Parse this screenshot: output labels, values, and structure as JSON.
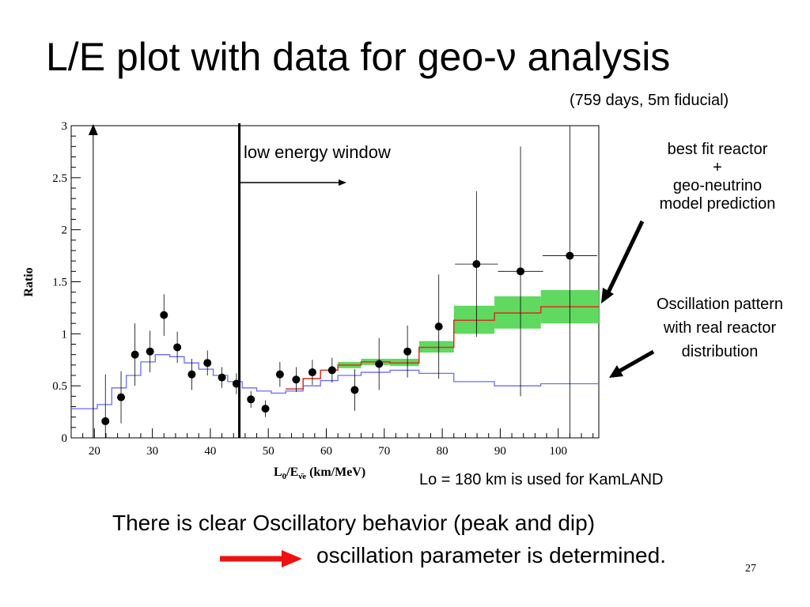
{
  "slide": {
    "title": "L/E plot with data for geo-ν analysis",
    "subtitle": "(759 days, 5m fiducial)",
    "note": "Lo = 180 km is used for KamLAND",
    "conclusion_line1": "There is clear Oscillatory behavior (peak and dip)",
    "conclusion_line2": "oscillation parameter is determined.",
    "page_number": "27"
  },
  "annotations": {
    "window_label": "low energy window",
    "bestfit_lines": [
      "best fit reactor",
      "+",
      "geo-neutrino",
      "model prediction"
    ],
    "oscillation_lines": [
      "Oscillation pattern",
      "with real reactor",
      "distribution"
    ]
  },
  "colors": {
    "data_points": "#000000",
    "no_osc_line": "#6a6aff",
    "best_fit_line": "#d9301e",
    "best_fit_band": "#5fd95f",
    "conclusion_arrow": "#ee1111"
  },
  "chart_data": {
    "type": "scatter",
    "xlabel": "L0/Eν̄e (km/MeV)",
    "ylabel": "Ratio",
    "xlim": [
      16,
      107
    ],
    "ylim": [
      0,
      3
    ],
    "x_ticks": [
      20,
      30,
      40,
      50,
      60,
      70,
      80,
      90,
      100
    ],
    "y_ticks": [
      {
        "value": 0,
        "label": "0"
      },
      {
        "value": 0.5,
        "label": "0.5"
      },
      {
        "value": 1,
        "label": "1"
      },
      {
        "value": 1.5,
        "label": "1.5"
      },
      {
        "value": 2,
        "label": "2"
      },
      {
        "value": 2.5,
        "label": "2.5"
      },
      {
        "value": 3,
        "label": "3"
      }
    ],
    "low_energy_window_x": 45,
    "data_points": [
      {
        "x": 21.9,
        "y": 0.16,
        "yerr": 0.45
      },
      {
        "x": 24.6,
        "y": 0.39,
        "yerr": 0.25
      },
      {
        "x": 27.0,
        "y": 0.8,
        "yerr": 0.3
      },
      {
        "x": 29.6,
        "y": 0.83,
        "yerr": 0.2
      },
      {
        "x": 32.0,
        "y": 1.18,
        "yerr": 0.2
      },
      {
        "x": 34.3,
        "y": 0.87,
        "yerr": 0.15
      },
      {
        "x": 36.8,
        "y": 0.61,
        "yerr": 0.15
      },
      {
        "x": 39.5,
        "y": 0.72,
        "yerr": 0.12
      },
      {
        "x": 42.0,
        "y": 0.58,
        "yerr": 0.1
      },
      {
        "x": 44.5,
        "y": 0.52,
        "yerr": 0.1
      },
      {
        "x": 47.0,
        "y": 0.37,
        "yerr": 0.08
      },
      {
        "x": 49.5,
        "y": 0.28,
        "yerr": 0.08
      },
      {
        "x": 52.0,
        "y": 0.61,
        "yerr": 0.12
      },
      {
        "x": 54.8,
        "y": 0.56,
        "yerr": 0.12
      },
      {
        "x": 57.6,
        "y": 0.63,
        "yerr": 0.12
      },
      {
        "x": 61.0,
        "y": 0.65,
        "yerr": 0.12
      },
      {
        "x": 64.9,
        "y": 0.46,
        "yerr": 0.2
      },
      {
        "x": 69.1,
        "y": 0.71,
        "yerr": 0.25
      },
      {
        "x": 74.0,
        "y": 0.83,
        "yerr": 0.25
      },
      {
        "x": 79.4,
        "y": 1.07,
        "yerr": 0.5
      },
      {
        "x": 85.9,
        "y": 1.67,
        "yerr": 0.7
      },
      {
        "x": 93.5,
        "y": 1.6,
        "yerr": 1.2
      },
      {
        "x": 102.0,
        "y": 1.75,
        "yerr": 1.95
      }
    ],
    "data_xerr": [
      {
        "x": 85.9,
        "xerr": 3.7
      },
      {
        "x": 93.5,
        "xerr": 3.9
      },
      {
        "x": 102.0,
        "xerr": 4.7
      }
    ],
    "no_oscillation_step": {
      "edges": [
        16,
        20.5,
        23,
        25.5,
        28,
        30.5,
        33,
        35.5,
        38,
        40.5,
        43,
        45.5,
        48,
        50.5,
        53,
        56,
        59,
        62,
        66,
        71,
        76,
        82,
        89,
        97,
        107
      ],
      "values": [
        0.28,
        0.32,
        0.48,
        0.6,
        0.73,
        0.8,
        0.78,
        0.72,
        0.66,
        0.6,
        0.54,
        0.48,
        0.45,
        0.43,
        0.45,
        0.5,
        0.55,
        0.6,
        0.63,
        0.65,
        0.62,
        0.54,
        0.5,
        0.52
      ]
    },
    "best_fit_step": {
      "edges": [
        53,
        56,
        59,
        62,
        66,
        71,
        76,
        82,
        89,
        97,
        107
      ],
      "values": [
        0.47,
        0.57,
        0.65,
        0.7,
        0.73,
        0.72,
        0.87,
        1.13,
        1.2,
        1.26
      ]
    },
    "best_fit_band": {
      "edges": [
        62,
        66,
        71,
        76,
        82,
        89,
        97,
        107
      ],
      "lower": [
        0.67,
        0.7,
        0.69,
        0.82,
        1.0,
        1.05,
        1.1
      ],
      "upper": [
        0.73,
        0.76,
        0.76,
        0.93,
        1.27,
        1.36,
        1.42
      ]
    }
  }
}
